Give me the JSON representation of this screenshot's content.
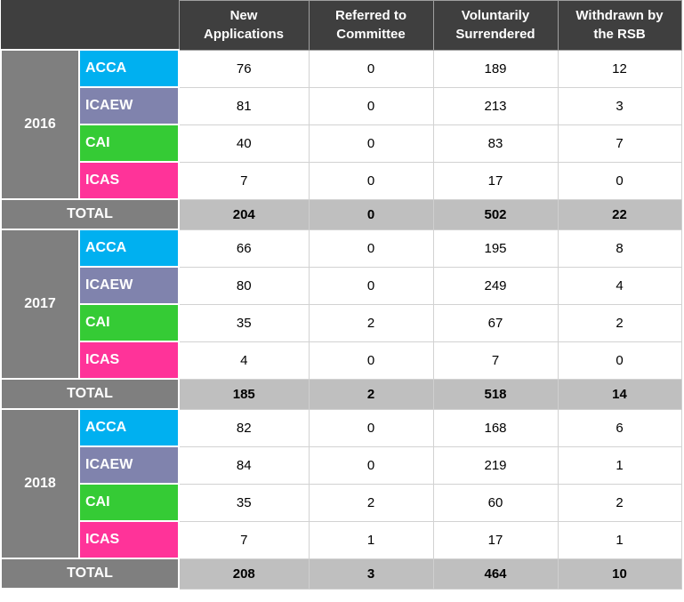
{
  "chart_data": {
    "type": "table",
    "columns": [
      "New\nApplications",
      "Referred to\nCommittee",
      "Voluntarily\nSurrendered",
      "Withdrawn by\nthe RSB"
    ],
    "groups": [
      {
        "year": "2016",
        "rows": [
          {
            "body": "ACCA",
            "color": "#00b0f0",
            "values": [
              76,
              0,
              189,
              12
            ]
          },
          {
            "body": "ICAEW",
            "color": "#8083ad",
            "values": [
              81,
              0,
              213,
              3
            ]
          },
          {
            "body": "CAI",
            "color": "#35cb35",
            "values": [
              40,
              0,
              83,
              7
            ]
          },
          {
            "body": "ICAS",
            "color": "#ff3399",
            "values": [
              7,
              0,
              17,
              0
            ]
          }
        ],
        "total": {
          "label": "TOTAL",
          "values": [
            204,
            0,
            502,
            22
          ]
        }
      },
      {
        "year": "2017",
        "rows": [
          {
            "body": "ACCA",
            "color": "#00b0f0",
            "values": [
              66,
              0,
              195,
              8
            ]
          },
          {
            "body": "ICAEW",
            "color": "#8083ad",
            "values": [
              80,
              0,
              249,
              4
            ]
          },
          {
            "body": "CAI",
            "color": "#35cb35",
            "values": [
              35,
              2,
              67,
              2
            ]
          },
          {
            "body": "ICAS",
            "color": "#ff3399",
            "values": [
              4,
              0,
              7,
              0
            ]
          }
        ],
        "total": {
          "label": "TOTAL",
          "values": [
            185,
            2,
            518,
            14
          ]
        }
      },
      {
        "year": "2018",
        "rows": [
          {
            "body": "ACCA",
            "color": "#00b0f0",
            "values": [
              82,
              0,
              168,
              6
            ]
          },
          {
            "body": "ICAEW",
            "color": "#8083ad",
            "values": [
              84,
              0,
              219,
              1
            ]
          },
          {
            "body": "CAI",
            "color": "#35cb35",
            "values": [
              35,
              2,
              60,
              2
            ]
          },
          {
            "body": "ICAS",
            "color": "#ff3399",
            "values": [
              7,
              1,
              17,
              1
            ]
          }
        ],
        "total": {
          "label": "TOTAL",
          "values": [
            208,
            3,
            464,
            10
          ]
        }
      }
    ]
  },
  "colors": {
    "header_bg": "#3f3f3f",
    "header_text": "#ffffff",
    "year_bg": "#7f7f7f",
    "total_label_bg": "#7f7f7f",
    "total_data_bg": "#bfbfbf",
    "acca": "#00b0f0",
    "icaew": "#8083ad",
    "cai": "#35cb35",
    "icas": "#ff3399",
    "grid_line": "#d2d2d2"
  }
}
